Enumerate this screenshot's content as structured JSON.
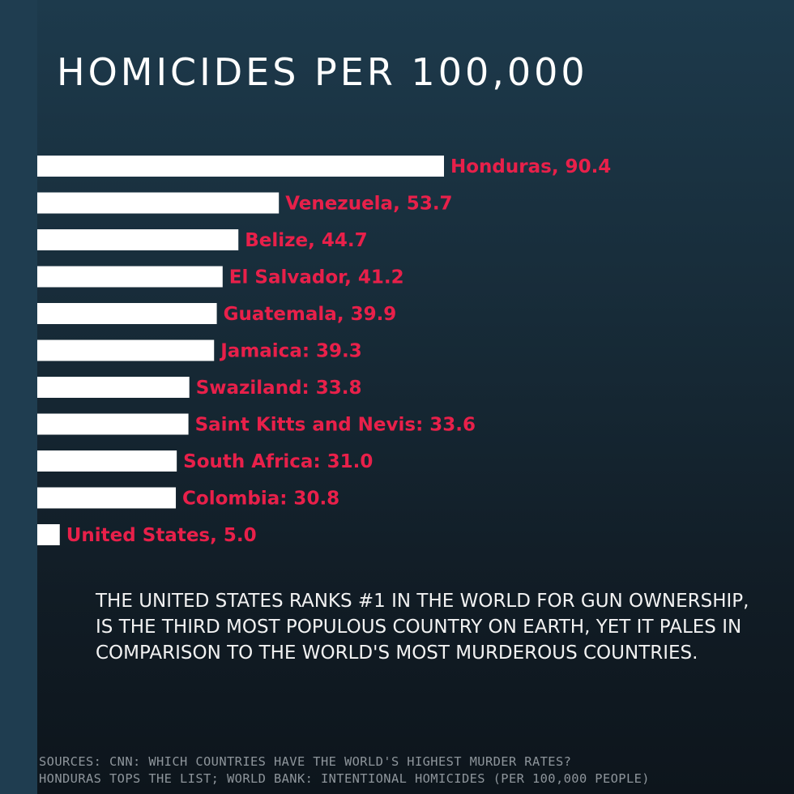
{
  "title": "HOMICIDES PER 100,000",
  "colors": {
    "bar": "#ffffff",
    "label": "#e8204a",
    "background": "#172b38"
  },
  "chart_data": {
    "type": "bar",
    "orientation": "horizontal",
    "title": "HOMICIDES PER 100,000",
    "xlabel": "",
    "ylabel": "",
    "grid": false,
    "categories": [
      "Honduras",
      "Venezuela",
      "Belize",
      "El Salvador",
      "Guatemala",
      "Jamaica",
      "Swaziland",
      "Saint Kitts and Nevis",
      "South Africa",
      "Colombia",
      "United States"
    ],
    "values": [
      90.4,
      53.7,
      44.7,
      41.2,
      39.9,
      39.3,
      33.8,
      33.6,
      31.0,
      30.8,
      5.0
    ],
    "labels": [
      "Honduras, 90.4",
      "Venezuela, 53.7",
      "Belize, 44.7",
      "El Salvador, 41.2",
      "Guatemala, 39.9",
      "Jamaica: 39.3",
      "Swaziland: 33.8",
      "Saint Kitts and Nevis: 33.6",
      "South Africa: 31.0",
      "Colombia: 30.8",
      "United States, 5.0"
    ],
    "xlim": [
      0,
      90.4
    ]
  },
  "body_text": "The United States ranks #1 in the world for gun ownership, is the third most populous country on Earth, yet it pales in comparison to the world's most murderous countries.",
  "sources": "SOURCES: CNN: WHICH COUNTRIES HAVE THE WORLD'S HIGHEST MURDER RATES?\nHONDURAS TOPS THE LIST; WORLD BANK: INTENTIONAL HOMICIDES (PER 100,000 PEOPLE)"
}
